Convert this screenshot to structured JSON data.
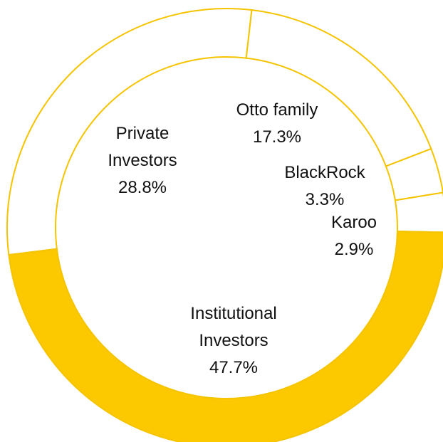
{
  "chart_data": {
    "type": "donut",
    "categories": [
      "Otto family",
      "BlackRock",
      "Karoo",
      "Institutional Investors",
      "Private Investors"
    ],
    "values": [
      17.3,
      3.3,
      2.9,
      47.7,
      28.8
    ],
    "value_labels": [
      "17.3%",
      "3.3%",
      "2.9%",
      "47.7%",
      "28.8%"
    ],
    "colors": [
      "#ffffff",
      "#ffffff",
      "#ffffff",
      "#fcc800",
      "#ffffff"
    ],
    "edge_color": "#f5c400"
  }
}
